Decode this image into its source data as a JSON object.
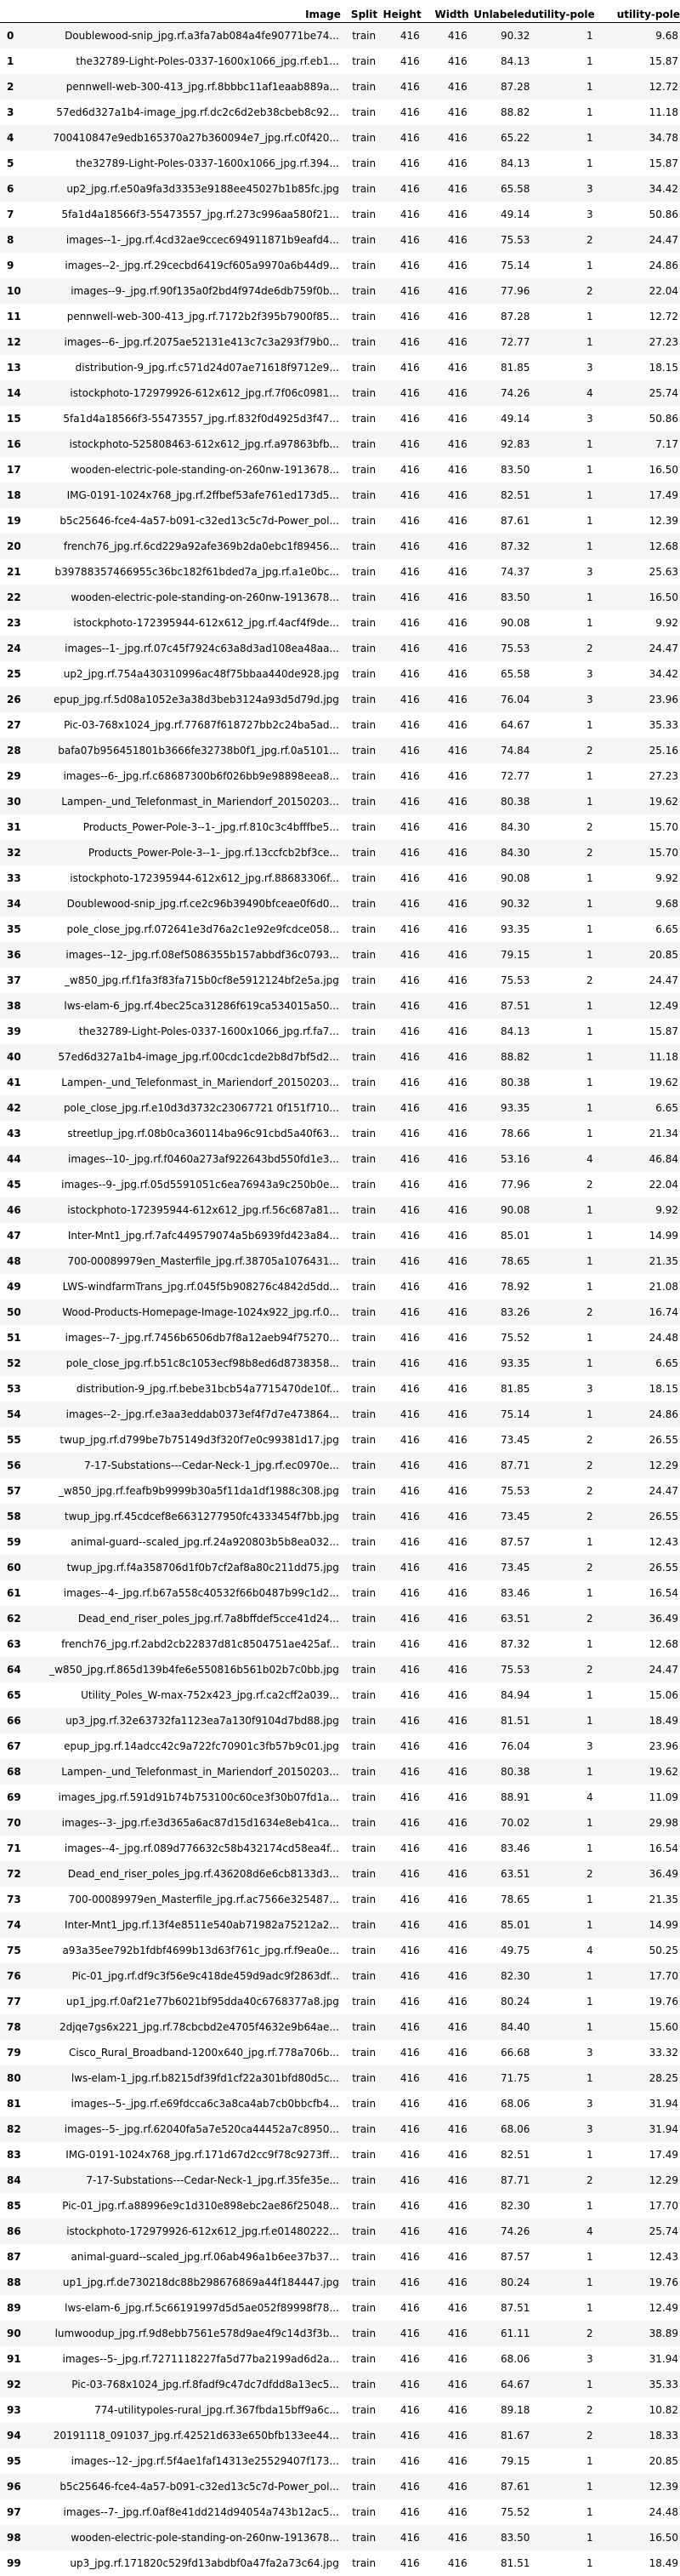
{
  "columns": [
    "",
    "Image",
    "Split",
    "Height",
    "Width",
    "Unlabeled",
    "utility-pole",
    "utility-pole"
  ],
  "rows": [
    [
      "0",
      "Doublewood-snip_jpg.rf.a3fa7ab084a4fe90771be74...",
      "train",
      "416",
      "416",
      "90.32",
      "1",
      "9.68"
    ],
    [
      "1",
      "the32789-Light-Poles-0337-1600x1066_jpg.rf.eb1...",
      "train",
      "416",
      "416",
      "84.13",
      "1",
      "15.87"
    ],
    [
      "2",
      "pennwell-web-300-413_jpg.rf.8bbbc11af1eaab889a...",
      "train",
      "416",
      "416",
      "87.28",
      "1",
      "12.72"
    ],
    [
      "3",
      "57ed6d327a1b4-image_jpg.rf.dc2c6d2eb38cbeb8c92...",
      "train",
      "416",
      "416",
      "88.82",
      "1",
      "11.18"
    ],
    [
      "4",
      "700410847e9edb165370a27b360094e7_jpg.rf.c0f420...",
      "train",
      "416",
      "416",
      "65.22",
      "1",
      "34.78"
    ],
    [
      "5",
      "the32789-Light-Poles-0337-1600x1066_jpg.rf.394...",
      "train",
      "416",
      "416",
      "84.13",
      "1",
      "15.87"
    ],
    [
      "6",
      "up2_jpg.rf.e50a9fa3d3353e9188ee45027b1b85fc.jpg",
      "train",
      "416",
      "416",
      "65.58",
      "3",
      "34.42"
    ],
    [
      "7",
      "5fa1d4a18566f3-55473557_jpg.rf.273c996aa580f21...",
      "train",
      "416",
      "416",
      "49.14",
      "3",
      "50.86"
    ],
    [
      "8",
      "images--1-_jpg.rf.4cd32ae9ccec694911871b9eafd4...",
      "train",
      "416",
      "416",
      "75.53",
      "2",
      "24.47"
    ],
    [
      "9",
      "images--2-_jpg.rf.29cecbd6419cf605a9970a6b44d9...",
      "train",
      "416",
      "416",
      "75.14",
      "1",
      "24.86"
    ],
    [
      "10",
      "images--9-_jpg.rf.90f135a0f2bd4f974de6db759f0b...",
      "train",
      "416",
      "416",
      "77.96",
      "2",
      "22.04"
    ],
    [
      "11",
      "pennwell-web-300-413_jpg.rf.7172b2f395b7900f85...",
      "train",
      "416",
      "416",
      "87.28",
      "1",
      "12.72"
    ],
    [
      "12",
      "images--6-_jpg.rf.2075ae52131e413c7c3a293f79b0...",
      "train",
      "416",
      "416",
      "72.77",
      "1",
      "27.23"
    ],
    [
      "13",
      "distribution-9_jpg.rf.c571d24d07ae71618f9712e9...",
      "train",
      "416",
      "416",
      "81.85",
      "3",
      "18.15"
    ],
    [
      "14",
      "istockphoto-172979926-612x612_jpg.rf.7f06c0981...",
      "train",
      "416",
      "416",
      "74.26",
      "4",
      "25.74"
    ],
    [
      "15",
      "5fa1d4a18566f3-55473557_jpg.rf.832f0d4925d3f47...",
      "train",
      "416",
      "416",
      "49.14",
      "3",
      "50.86"
    ],
    [
      "16",
      "istockphoto-525808463-612x612_jpg.rf.a97863bfb...",
      "train",
      "416",
      "416",
      "92.83",
      "1",
      "7.17"
    ],
    [
      "17",
      "wooden-electric-pole-standing-on-260nw-1913678...",
      "train",
      "416",
      "416",
      "83.50",
      "1",
      "16.50"
    ],
    [
      "18",
      "IMG-0191-1024x768_jpg.rf.2ffbef53afe761ed173d5...",
      "train",
      "416",
      "416",
      "82.51",
      "1",
      "17.49"
    ],
    [
      "19",
      "b5c25646-fce4-4a57-b091-c32ed13c5c7d-Power_pol...",
      "train",
      "416",
      "416",
      "87.61",
      "1",
      "12.39"
    ],
    [
      "20",
      "french76_jpg.rf.6cd229a92afe369b2da0ebc1f89456...",
      "train",
      "416",
      "416",
      "87.32",
      "1",
      "12.68"
    ],
    [
      "21",
      "b39788357466955c36bc182f61bded7a_jpg.rf.a1e0bc...",
      "train",
      "416",
      "416",
      "74.37",
      "3",
      "25.63"
    ],
    [
      "22",
      "wooden-electric-pole-standing-on-260nw-1913678...",
      "train",
      "416",
      "416",
      "83.50",
      "1",
      "16.50"
    ],
    [
      "23",
      "istockphoto-172395944-612x612_jpg.rf.4acf4f9de...",
      "train",
      "416",
      "416",
      "90.08",
      "1",
      "9.92"
    ],
    [
      "24",
      "images--1-_jpg.rf.07c45f7924c63a8d3ad108ea48aa...",
      "train",
      "416",
      "416",
      "75.53",
      "2",
      "24.47"
    ],
    [
      "25",
      "up2_jpg.rf.754a430310996ac48f75bbaa440de928.jpg",
      "train",
      "416",
      "416",
      "65.58",
      "3",
      "34.42"
    ],
    [
      "26",
      "epup_jpg.rf.5d08a1052e3a38d3beb3124a93d5d79d.jpg",
      "train",
      "416",
      "416",
      "76.04",
      "3",
      "23.96"
    ],
    [
      "27",
      "Pic-03-768x1024_jpg.rf.77687f618727bb2c24ba5ad...",
      "train",
      "416",
      "416",
      "64.67",
      "1",
      "35.33"
    ],
    [
      "28",
      "bafa07b956451801b3666fe32738b0f1_jpg.rf.0a5101...",
      "train",
      "416",
      "416",
      "74.84",
      "2",
      "25.16"
    ],
    [
      "29",
      "images--6-_jpg.rf.c68687300b6f026bb9e98898eea8...",
      "train",
      "416",
      "416",
      "72.77",
      "1",
      "27.23"
    ],
    [
      "30",
      "Lampen-_und_Telefonmast_in_Mariendorf_20150203...",
      "train",
      "416",
      "416",
      "80.38",
      "1",
      "19.62"
    ],
    [
      "31",
      "Products_Power-Pole-3--1-_jpg.rf.810c3c4bfffbe5...",
      "train",
      "416",
      "416",
      "84.30",
      "2",
      "15.70"
    ],
    [
      "32",
      "Products_Power-Pole-3--1-_jpg.rf.13ccfcb2bf3ce...",
      "train",
      "416",
      "416",
      "84.30",
      "2",
      "15.70"
    ],
    [
      "33",
      "istockphoto-172395944-612x612_jpg.rf.88683306f...",
      "train",
      "416",
      "416",
      "90.08",
      "1",
      "9.92"
    ],
    [
      "34",
      "Doublewood-snip_jpg.rf.ce2c96b39490bfceae0f6d0...",
      "train",
      "416",
      "416",
      "90.32",
      "1",
      "9.68"
    ],
    [
      "35",
      "pole_close_jpg.rf.072641e3d76a2c1e92e9fcdce058...",
      "train",
      "416",
      "416",
      "93.35",
      "1",
      "6.65"
    ],
    [
      "36",
      "images--12-_jpg.rf.08ef5086355b157abbdf36c0793...",
      "train",
      "416",
      "416",
      "79.15",
      "1",
      "20.85"
    ],
    [
      "37",
      "_w850_jpg.rf.f1fa3f83fa715b0cf8e5912124bf2e5a.jpg",
      "train",
      "416",
      "416",
      "75.53",
      "2",
      "24.47"
    ],
    [
      "38",
      "lws-elam-6_jpg.rf.4bec25ca31286f619ca534015a50...",
      "train",
      "416",
      "416",
      "87.51",
      "1",
      "12.49"
    ],
    [
      "39",
      "the32789-Light-Poles-0337-1600x1066_jpg.rf.fa7...",
      "train",
      "416",
      "416",
      "84.13",
      "1",
      "15.87"
    ],
    [
      "40",
      "57ed6d327a1b4-image_jpg.rf.00cdc1cde2b8d7bf5d2...",
      "train",
      "416",
      "416",
      "88.82",
      "1",
      "11.18"
    ],
    [
      "41",
      "Lampen-_und_Telefonmast_in_Mariendorf_20150203...",
      "train",
      "416",
      "416",
      "80.38",
      "1",
      "19.62"
    ],
    [
      "42",
      "pole_close_jpg.rf.e10d3d3732c23067721 0f151f710...",
      "train",
      "416",
      "416",
      "93.35",
      "1",
      "6.65"
    ],
    [
      "43",
      "streetlup_jpg.rf.08b0ca360114ba96c91cbd5a40f63...",
      "train",
      "416",
      "416",
      "78.66",
      "1",
      "21.34"
    ],
    [
      "44",
      "images--10-_jpg.rf.f0460a273af922643bd550fd1e3...",
      "train",
      "416",
      "416",
      "53.16",
      "4",
      "46.84"
    ],
    [
      "45",
      "images--9-_jpg.rf.05d5591051c6ea76943a9c250b0e...",
      "train",
      "416",
      "416",
      "77.96",
      "2",
      "22.04"
    ],
    [
      "46",
      "istockphoto-172395944-612x612_jpg.rf.56c687a81...",
      "train",
      "416",
      "416",
      "90.08",
      "1",
      "9.92"
    ],
    [
      "47",
      "Inter-Mnt1_jpg.rf.7afc449579074a5b6939fd423a84...",
      "train",
      "416",
      "416",
      "85.01",
      "1",
      "14.99"
    ],
    [
      "48",
      "700-00089979en_Masterfile_jpg.rf.38705a1076431...",
      "train",
      "416",
      "416",
      "78.65",
      "1",
      "21.35"
    ],
    [
      "49",
      "LWS-windfarmTrans_jpg.rf.045f5b908276c4842d5dd...",
      "train",
      "416",
      "416",
      "78.92",
      "1",
      "21.08"
    ],
    [
      "50",
      "Wood-Products-Homepage-Image-1024x922_jpg.rf.0...",
      "train",
      "416",
      "416",
      "83.26",
      "2",
      "16.74"
    ],
    [
      "51",
      "images--7-_jpg.rf.7456b6506db7f8a12aeb94f75270...",
      "train",
      "416",
      "416",
      "75.52",
      "1",
      "24.48"
    ],
    [
      "52",
      "pole_close_jpg.rf.b51c8c1053ecf98b8ed6d8738358...",
      "train",
      "416",
      "416",
      "93.35",
      "1",
      "6.65"
    ],
    [
      "53",
      "distribution-9_jpg.rf.bebe31bcb54a7715470de10f...",
      "train",
      "416",
      "416",
      "81.85",
      "3",
      "18.15"
    ],
    [
      "54",
      "images--2-_jpg.rf.e3aa3eddab0373ef4f7d7e473864...",
      "train",
      "416",
      "416",
      "75.14",
      "1",
      "24.86"
    ],
    [
      "55",
      "twup_jpg.rf.d799be7b75149d3f320f7e0c99381d17.jpg",
      "train",
      "416",
      "416",
      "73.45",
      "2",
      "26.55"
    ],
    [
      "56",
      "7-17-Substations---Cedar-Neck-1_jpg.rf.ec0970e...",
      "train",
      "416",
      "416",
      "87.71",
      "2",
      "12.29"
    ],
    [
      "57",
      "_w850_jpg.rf.feafb9b9999b30a5f11da1df1988c308.jpg",
      "train",
      "416",
      "416",
      "75.53",
      "2",
      "24.47"
    ],
    [
      "58",
      "twup_jpg.rf.45cdcef8e6631277950fc4333454f7bb.jpg",
      "train",
      "416",
      "416",
      "73.45",
      "2",
      "26.55"
    ],
    [
      "59",
      "animal-guard--scaled_jpg.rf.24a920803b5b8ea032...",
      "train",
      "416",
      "416",
      "87.57",
      "1",
      "12.43"
    ],
    [
      "60",
      "twup_jpg.rf.f4a358706d1f0b7cf2af8a80c211dd75.jpg",
      "train",
      "416",
      "416",
      "73.45",
      "2",
      "26.55"
    ],
    [
      "61",
      "images--4-_jpg.rf.b67a558c40532f66b0487b99c1d2...",
      "train",
      "416",
      "416",
      "83.46",
      "1",
      "16.54"
    ],
    [
      "62",
      "Dead_end_riser_poles_jpg.rf.7a8bffdef5cce41d24...",
      "train",
      "416",
      "416",
      "63.51",
      "2",
      "36.49"
    ],
    [
      "63",
      "french76_jpg.rf.2abd2cb22837d81c8504751ae425af...",
      "train",
      "416",
      "416",
      "87.32",
      "1",
      "12.68"
    ],
    [
      "64",
      "_w850_jpg.rf.865d139b4fe6e550816b561b02b7c0bb.jpg",
      "train",
      "416",
      "416",
      "75.53",
      "2",
      "24.47"
    ],
    [
      "65",
      "Utility_Poles_W-max-752x423_jpg.rf.ca2cff2a039...",
      "train",
      "416",
      "416",
      "84.94",
      "1",
      "15.06"
    ],
    [
      "66",
      "up3_jpg.rf.32e63732fa1123ea7a130f9104d7bd88.jpg",
      "train",
      "416",
      "416",
      "81.51",
      "1",
      "18.49"
    ],
    [
      "67",
      "epup_jpg.rf.14adcc42c9a722fc70901c3fb57b9c01.jpg",
      "train",
      "416",
      "416",
      "76.04",
      "3",
      "23.96"
    ],
    [
      "68",
      "Lampen-_und_Telefonmast_in_Mariendorf_20150203...",
      "train",
      "416",
      "416",
      "80.38",
      "1",
      "19.62"
    ],
    [
      "69",
      "images_jpg.rf.591d91b74b753100c60ce3f30b07fd1a...",
      "train",
      "416",
      "416",
      "88.91",
      "4",
      "11.09"
    ],
    [
      "70",
      "images--3-_jpg.rf.e3d365a6ac87d15d1634e8eb41ca...",
      "train",
      "416",
      "416",
      "70.02",
      "1",
      "29.98"
    ],
    [
      "71",
      "images--4-_jpg.rf.089d776632c58b432174cd58ea4f...",
      "train",
      "416",
      "416",
      "83.46",
      "1",
      "16.54"
    ],
    [
      "72",
      "Dead_end_riser_poles_jpg.rf.436208d6e6cb8133d3...",
      "train",
      "416",
      "416",
      "63.51",
      "2",
      "36.49"
    ],
    [
      "73",
      "700-00089979en_Masterfile_jpg.rf.ac7566e325487...",
      "train",
      "416",
      "416",
      "78.65",
      "1",
      "21.35"
    ],
    [
      "74",
      "Inter-Mnt1_jpg.rf.13f4e8511e540ab71982a75212a2...",
      "train",
      "416",
      "416",
      "85.01",
      "1",
      "14.99"
    ],
    [
      "75",
      "a93a35ee792b1fdbf4699b13d63f761c_jpg.rf.f9ea0e...",
      "train",
      "416",
      "416",
      "49.75",
      "4",
      "50.25"
    ],
    [
      "76",
      "Pic-01_jpg.rf.df9c3f56e9c418de459d9adc9f2863df...",
      "train",
      "416",
      "416",
      "82.30",
      "1",
      "17.70"
    ],
    [
      "77",
      "up1_jpg.rf.0af21e77b6021bf95dda40c6768377a8.jpg",
      "train",
      "416",
      "416",
      "80.24",
      "1",
      "19.76"
    ],
    [
      "78",
      "2djqe7gs6x221_jpg.rf.78cbcbd2e4705f4632e9b64ae...",
      "train",
      "416",
      "416",
      "84.40",
      "1",
      "15.60"
    ],
    [
      "79",
      "Cisco_Rural_Broadband-1200x640_jpg.rf.778a706b...",
      "train",
      "416",
      "416",
      "66.68",
      "3",
      "33.32"
    ],
    [
      "80",
      "lws-elam-1_jpg.rf.b8215df39fd1cf22a301bfd80d5c...",
      "train",
      "416",
      "416",
      "71.75",
      "1",
      "28.25"
    ],
    [
      "81",
      "images--5-_jpg.rf.e69fdcca6c3a8ca4ab7cb0bbcfb4...",
      "train",
      "416",
      "416",
      "68.06",
      "3",
      "31.94"
    ],
    [
      "82",
      "images--5-_jpg.rf.62040fa5a7e520ca44452a7c8950...",
      "train",
      "416",
      "416",
      "68.06",
      "3",
      "31.94"
    ],
    [
      "83",
      "IMG-0191-1024x768_jpg.rf.171d67d2cc9f78c9273ff...",
      "train",
      "416",
      "416",
      "82.51",
      "1",
      "17.49"
    ],
    [
      "84",
      "7-17-Substations---Cedar-Neck-1_jpg.rf.35fe35e...",
      "train",
      "416",
      "416",
      "87.71",
      "2",
      "12.29"
    ],
    [
      "85",
      "Pic-01_jpg.rf.a88996e9c1d310e898ebc2ae86f25048...",
      "train",
      "416",
      "416",
      "82.30",
      "1",
      "17.70"
    ],
    [
      "86",
      "istockphoto-172979926-612x612_jpg.rf.e01480222...",
      "train",
      "416",
      "416",
      "74.26",
      "4",
      "25.74"
    ],
    [
      "87",
      "animal-guard--scaled_jpg.rf.06ab496a1b6ee37b37...",
      "train",
      "416",
      "416",
      "87.57",
      "1",
      "12.43"
    ],
    [
      "88",
      "up1_jpg.rf.de730218dc88b298676869a44f184447.jpg",
      "train",
      "416",
      "416",
      "80.24",
      "1",
      "19.76"
    ],
    [
      "89",
      "lws-elam-6_jpg.rf.5c66191997d5d5ae052f89998f78...",
      "train",
      "416",
      "416",
      "87.51",
      "1",
      "12.49"
    ],
    [
      "90",
      "lumwoodup_jpg.rf.9d8ebb7561e578d9ae4f9c14d3f3b...",
      "train",
      "416",
      "416",
      "61.11",
      "2",
      "38.89"
    ],
    [
      "91",
      "images--5-_jpg.rf.7271118227fa5d77ba2199ad6d2a...",
      "train",
      "416",
      "416",
      "68.06",
      "3",
      "31.94"
    ],
    [
      "92",
      "Pic-03-768x1024_jpg.rf.8fadf9c47dc7dfdd8a13ec5...",
      "train",
      "416",
      "416",
      "64.67",
      "1",
      "35.33"
    ],
    [
      "93",
      "774-utilitypoles-rural_jpg.rf.367fbda15bff9a6c...",
      "train",
      "416",
      "416",
      "89.18",
      "2",
      "10.82"
    ],
    [
      "94",
      "20191118_091037_jpg.rf.42521d633e650bfb133ee44...",
      "train",
      "416",
      "416",
      "81.67",
      "2",
      "18.33"
    ],
    [
      "95",
      "images--12-_jpg.rf.5f4ae1faf14313e25529407f173...",
      "train",
      "416",
      "416",
      "79.15",
      "1",
      "20.85"
    ],
    [
      "96",
      "b5c25646-fce4-4a57-b091-c32ed13c5c7d-Power_pol...",
      "train",
      "416",
      "416",
      "87.61",
      "1",
      "12.39"
    ],
    [
      "97",
      "images--7-_jpg.rf.0af8e41dd214d94054a743b12ac5...",
      "train",
      "416",
      "416",
      "75.52",
      "1",
      "24.48"
    ],
    [
      "98",
      "wooden-electric-pole-standing-on-260nw-1913678...",
      "train",
      "416",
      "416",
      "83.50",
      "1",
      "16.50"
    ],
    [
      "99",
      "up3_jpg.rf.171820c529fd13abdbf0a47fa2a73c64.jpg",
      "train",
      "416",
      "416",
      "81.51",
      "1",
      "18.49"
    ]
  ]
}
